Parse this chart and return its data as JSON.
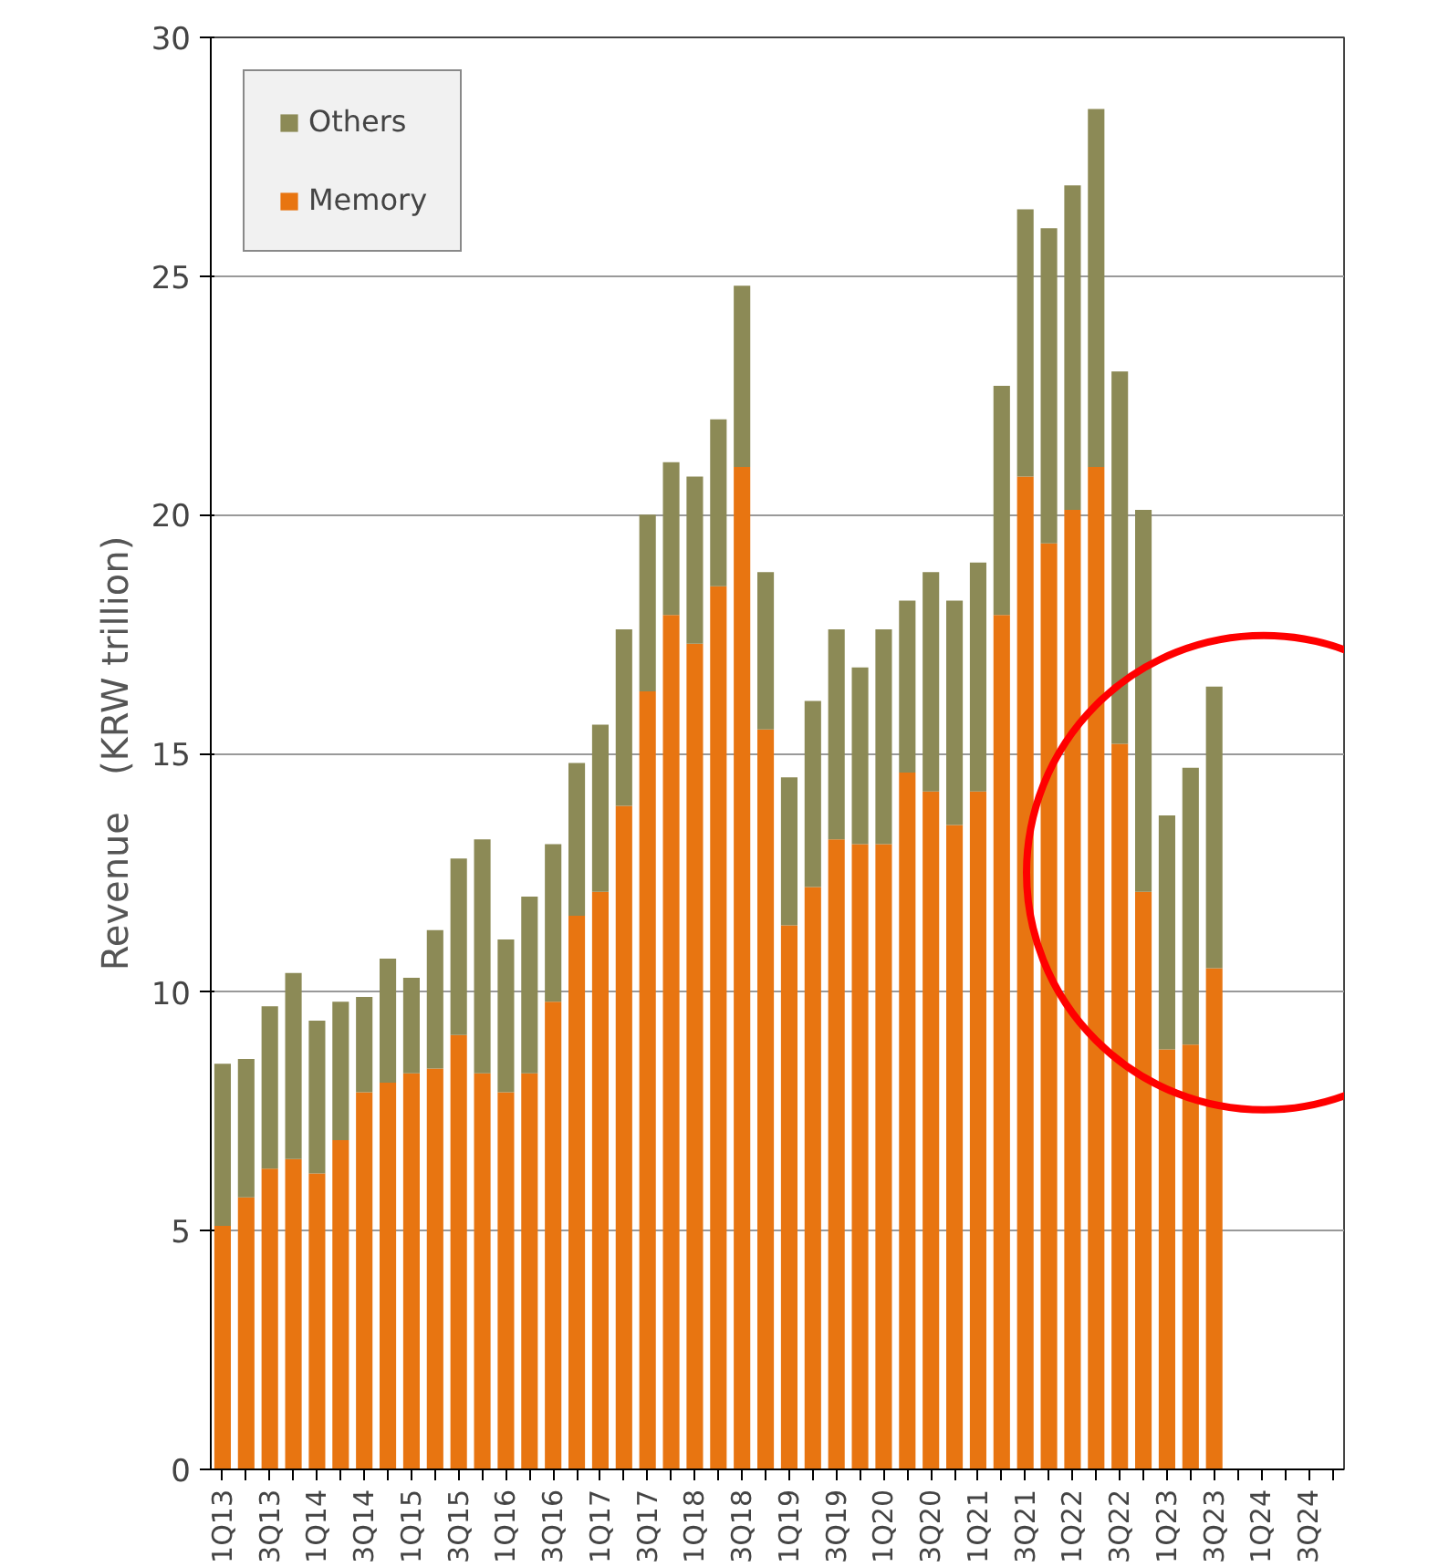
{
  "chart_data": {
    "type": "bar",
    "stacked": true,
    "ylabel": "Revenue　(KRW trillion)",
    "categories": [
      "1Q13",
      null,
      "3Q13",
      null,
      "1Q14",
      null,
      "3Q14",
      null,
      "1Q15",
      null,
      "3Q15",
      null,
      "1Q16",
      null,
      "3Q16",
      null,
      "1Q17",
      null,
      "3Q17",
      null,
      "1Q18",
      null,
      "3Q18",
      null,
      "1Q19",
      null,
      "3Q19",
      null,
      "1Q20",
      null,
      "3Q20",
      null,
      "1Q21",
      null,
      "3Q21",
      null,
      "1Q22",
      null,
      "3Q22",
      null,
      "1Q23",
      null,
      "3Q23",
      null,
      "1Q24",
      null,
      "3Q24",
      null
    ],
    "series": [
      {
        "name": "Memory",
        "color": "#e87511",
        "values": [
          5.1,
          5.7,
          6.3,
          6.5,
          6.2,
          6.9,
          7.9,
          8.1,
          8.3,
          8.4,
          9.1,
          8.3,
          7.9,
          8.3,
          9.8,
          11.6,
          12.1,
          13.9,
          16.3,
          17.9,
          17.3,
          18.5,
          21.0,
          15.5,
          11.4,
          12.2,
          13.2,
          13.1,
          13.1,
          14.6,
          14.2,
          13.5,
          14.2,
          17.9,
          20.8,
          19.4,
          20.1,
          21.0,
          15.2,
          12.1,
          8.8,
          8.9,
          10.5,
          null,
          null,
          null,
          null,
          null
        ]
      },
      {
        "name": "Others",
        "color": "#8c8a56",
        "values": [
          3.4,
          2.9,
          3.4,
          3.9,
          3.2,
          2.9,
          2.0,
          2.6,
          2.0,
          2.9,
          3.7,
          4.9,
          3.2,
          3.7,
          3.3,
          3.2,
          3.5,
          3.7,
          3.7,
          3.2,
          3.5,
          3.5,
          3.8,
          3.3,
          3.1,
          3.9,
          4.4,
          3.7,
          4.5,
          3.6,
          4.6,
          4.7,
          4.8,
          4.8,
          5.6,
          6.6,
          6.8,
          7.5,
          7.8,
          8.0,
          4.9,
          5.8,
          5.9,
          null,
          null,
          null,
          null,
          null
        ]
      }
    ],
    "ylim": [
      0,
      30
    ],
    "yticks": [
      0,
      5,
      10,
      15,
      20,
      25,
      30
    ],
    "grid": "y",
    "legend": "top left"
  }
}
